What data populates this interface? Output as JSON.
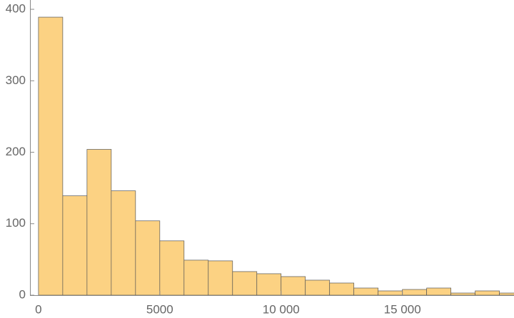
{
  "chart_data": {
    "type": "histogram",
    "bins": [
      0,
      1000,
      2000,
      3000,
      4000,
      5000,
      6000,
      7000,
      8000,
      9000,
      10000,
      11000,
      12000,
      13000,
      14000,
      15000,
      16000,
      17000,
      18000,
      19000,
      20000
    ],
    "values": [
      389,
      139,
      204,
      146,
      104,
      76,
      49,
      48,
      33,
      30,
      26,
      21,
      17,
      10,
      6,
      8,
      10,
      3,
      6,
      3
    ],
    "color": "#fcd283",
    "xlim": [
      -350,
      19600
    ],
    "ylim": [
      0,
      412
    ],
    "xticks": [
      0,
      5000,
      {
        "value": 10000,
        "label": "10 000"
      },
      {
        "value": 15000,
        "label": "15 000"
      }
    ],
    "yticks": [
      0,
      100,
      200,
      300,
      400
    ]
  }
}
